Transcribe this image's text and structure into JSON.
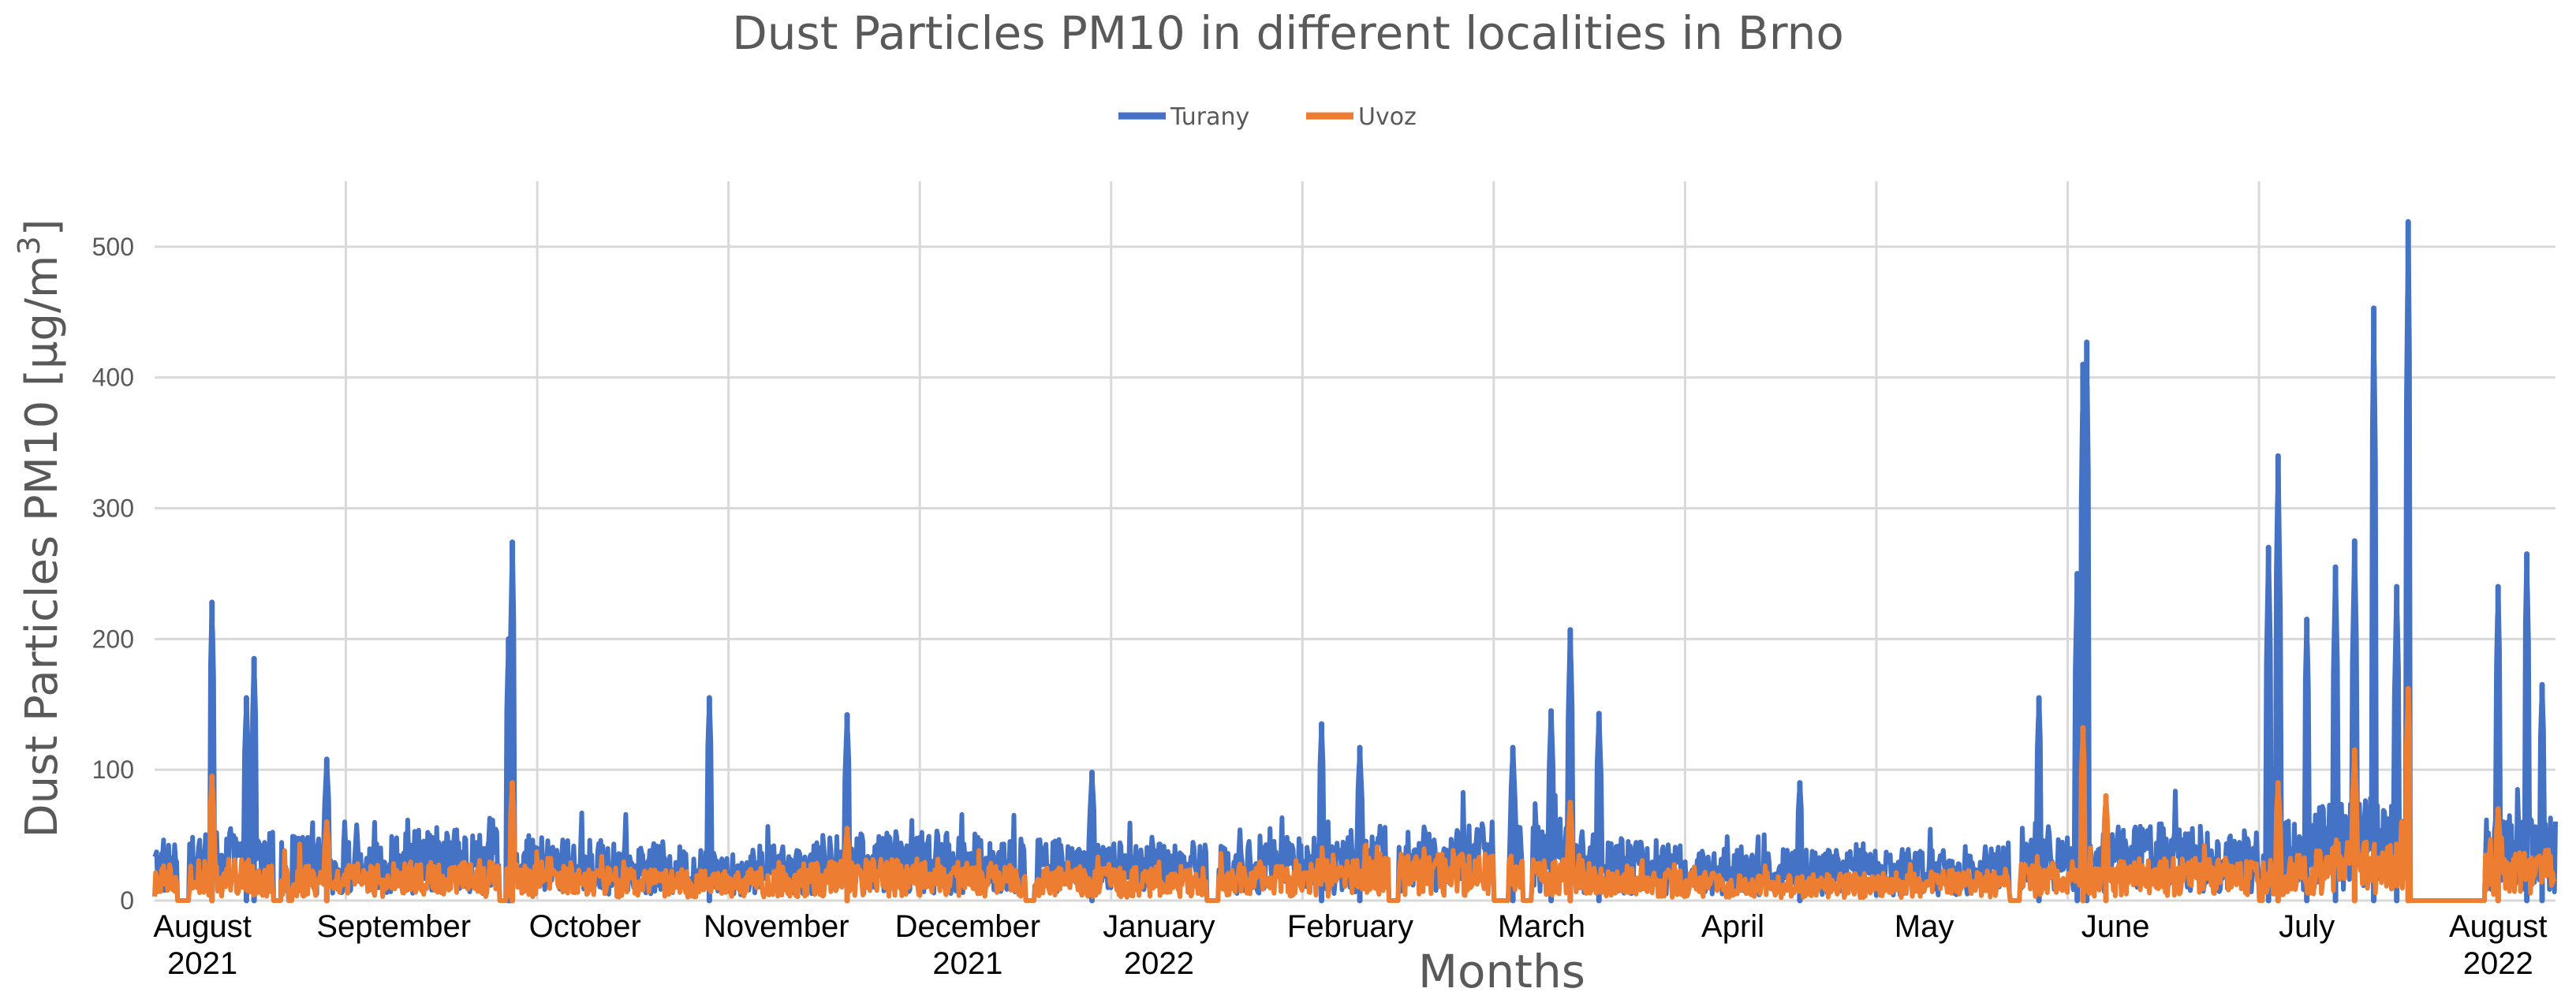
{
  "chart_data": {
    "type": "line",
    "title": "Dust Particles PM10 in different localities in Brno",
    "xlabel": "Months",
    "ylabel": "Dust Particles PM10 [µg/m3]",
    "ylabel_parts": {
      "main": "Dust Particles PM10 [µg/m",
      "sup": "3",
      "end": "]"
    },
    "ylim": [
      0,
      550
    ],
    "yticks": [
      0,
      100,
      200,
      300,
      400,
      500
    ],
    "grid": true,
    "legend_position": "top-center",
    "x_categories": [
      {
        "line1": "August",
        "line2": "2021"
      },
      {
        "line1": "September",
        "line2": ""
      },
      {
        "line1": "October",
        "line2": ""
      },
      {
        "line1": "November",
        "line2": ""
      },
      {
        "line1": "December",
        "line2": "2021"
      },
      {
        "line1": "January",
        "line2": "2022"
      },
      {
        "line1": "February",
        "line2": ""
      },
      {
        "line1": "March",
        "line2": ""
      },
      {
        "line1": "April",
        "line2": ""
      },
      {
        "line1": "May",
        "line2": ""
      },
      {
        "line1": "June",
        "line2": ""
      },
      {
        "line1": "July",
        "line2": ""
      },
      {
        "line1": "August",
        "line2": "2022"
      }
    ],
    "x_range_months": [
      0,
      12.55
    ],
    "series": [
      {
        "name": "Turany",
        "color": "#4472C4",
        "baseline": [
          [
            0,
            30
          ],
          [
            0.5,
            38
          ],
          [
            1,
            30
          ],
          [
            1.5,
            38
          ],
          [
            2,
            33
          ],
          [
            2.5,
            30
          ],
          [
            3,
            26
          ],
          [
            3.5,
            33
          ],
          [
            4,
            36
          ],
          [
            4.5,
            33
          ],
          [
            5,
            30
          ],
          [
            5.5,
            30
          ],
          [
            6,
            33
          ],
          [
            6.5,
            40
          ],
          [
            7,
            42
          ],
          [
            7.5,
            36
          ],
          [
            8,
            28
          ],
          [
            8.5,
            26
          ],
          [
            9,
            26
          ],
          [
            9.5,
            28
          ],
          [
            10,
            33
          ],
          [
            10.5,
            40
          ],
          [
            11,
            36
          ],
          [
            11.5,
            55
          ],
          [
            12,
            44
          ],
          [
            12.55,
            44
          ]
        ],
        "spikes": [
          [
            0.3,
            228
          ],
          [
            0.48,
            155
          ],
          [
            0.52,
            185
          ],
          [
            0.9,
            108
          ],
          [
            1.85,
            200
          ],
          [
            1.87,
            274
          ],
          [
            1.86,
            176
          ],
          [
            2.9,
            155
          ],
          [
            3.62,
            142
          ],
          [
            4.9,
            98
          ],
          [
            6.1,
            135
          ],
          [
            6.3,
            117
          ],
          [
            7.1,
            117
          ],
          [
            7.3,
            145
          ],
          [
            7.4,
            207
          ],
          [
            7.55,
            143
          ],
          [
            8.6,
            90
          ],
          [
            9.85,
            155
          ],
          [
            10.05,
            250
          ],
          [
            10.08,
            410
          ],
          [
            10.1,
            427
          ],
          [
            11.05,
            270
          ],
          [
            11.1,
            340
          ],
          [
            11.25,
            215
          ],
          [
            11.4,
            255
          ],
          [
            11.5,
            275
          ],
          [
            11.6,
            453
          ],
          [
            11.72,
            240
          ],
          [
            11.78,
            519
          ],
          [
            12.25,
            240
          ],
          [
            12.4,
            265
          ],
          [
            12.48,
            165
          ]
        ],
        "gaps": [
          [
            0.12,
            0.18
          ],
          [
            0.62,
            0.66
          ],
          [
            0.7,
            0.72
          ],
          [
            1.8,
            1.84
          ],
          [
            4.55,
            4.6
          ],
          [
            5.5,
            5.56
          ],
          [
            6.45,
            6.5
          ],
          [
            7.0,
            7.08
          ],
          [
            7.15,
            7.2
          ],
          [
            9.7,
            9.75
          ],
          [
            11.0,
            11.02
          ],
          [
            11.79,
            12.18
          ]
        ]
      },
      {
        "name": "Uvoz",
        "color": "#ED7D31",
        "baseline": [
          [
            0,
            18
          ],
          [
            0.5,
            22
          ],
          [
            1,
            18
          ],
          [
            1.5,
            20
          ],
          [
            2,
            18
          ],
          [
            2.5,
            17
          ],
          [
            3,
            15
          ],
          [
            3.5,
            20
          ],
          [
            4,
            22
          ],
          [
            4.5,
            18
          ],
          [
            5,
            17
          ],
          [
            5.5,
            18
          ],
          [
            6,
            20
          ],
          [
            6.5,
            24
          ],
          [
            7,
            24
          ],
          [
            7.5,
            20
          ],
          [
            8,
            15
          ],
          [
            8.5,
            13
          ],
          [
            9,
            14
          ],
          [
            9.5,
            16
          ],
          [
            10,
            20
          ],
          [
            10.5,
            22
          ],
          [
            11,
            20
          ],
          [
            11.5,
            32
          ],
          [
            12,
            26
          ],
          [
            12.55,
            26
          ]
        ],
        "spikes": [
          [
            0.3,
            95
          ],
          [
            0.9,
            60
          ],
          [
            1.87,
            90
          ],
          [
            3.62,
            55
          ],
          [
            7.4,
            75
          ],
          [
            10.08,
            132
          ],
          [
            10.2,
            80
          ],
          [
            11.1,
            90
          ],
          [
            11.5,
            115
          ],
          [
            11.78,
            162
          ],
          [
            12.25,
            70
          ]
        ],
        "gaps": [
          [
            0.12,
            0.18
          ],
          [
            0.62,
            0.66
          ],
          [
            0.7,
            0.72
          ],
          [
            1.8,
            1.84
          ],
          [
            4.55,
            4.6
          ],
          [
            5.5,
            5.56
          ],
          [
            6.45,
            6.5
          ],
          [
            7.0,
            7.08
          ],
          [
            7.15,
            7.2
          ],
          [
            9.7,
            9.75
          ],
          [
            11.0,
            11.02
          ],
          [
            11.79,
            12.18
          ]
        ]
      }
    ]
  }
}
